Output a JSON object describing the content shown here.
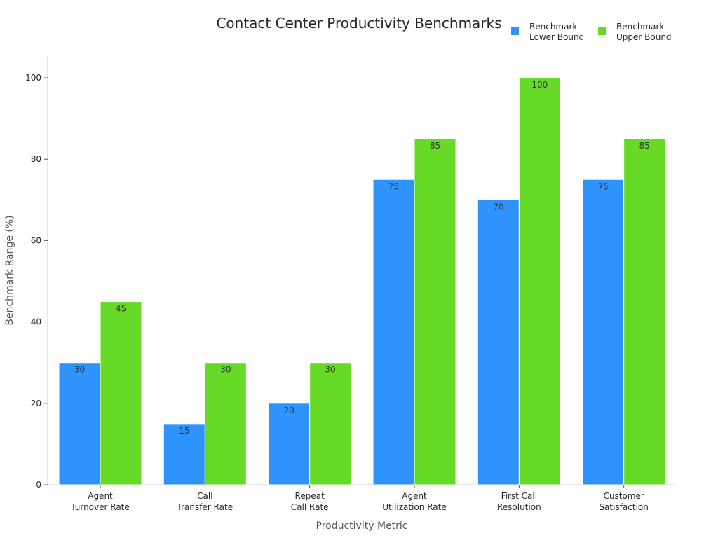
{
  "chart_data": {
    "type": "bar",
    "title": "Contact Center Productivity Benchmarks",
    "xlabel": "Productivity Metric",
    "ylabel": "Benchmark Range (%)",
    "ylim": [
      0,
      105
    ],
    "yticks": [
      0,
      20,
      40,
      60,
      80,
      100
    ],
    "grid": false,
    "legend_position": "top-right",
    "categories": [
      [
        "Agent",
        "Turnover Rate"
      ],
      [
        "Call",
        "Transfer Rate"
      ],
      [
        "Repeat",
        "Call Rate"
      ],
      [
        "Agent",
        "Utilization Rate"
      ],
      [
        "First Call",
        "Resolution"
      ],
      [
        "Customer",
        "Satisfaction"
      ]
    ],
    "series": [
      {
        "name": [
          "Benchmark",
          "Lower Bound"
        ],
        "color": "#2E93FA",
        "values": [
          30,
          15,
          20,
          75,
          70,
          75
        ]
      },
      {
        "name": [
          "Benchmark",
          "Upper Bound"
        ],
        "color": "#66DA26",
        "values": [
          45,
          30,
          30,
          85,
          100,
          85
        ]
      }
    ]
  }
}
